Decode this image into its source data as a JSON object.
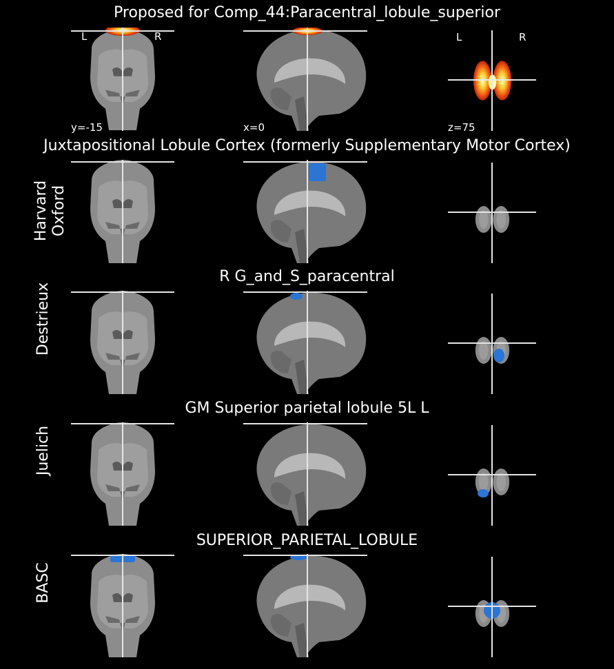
{
  "colors": {
    "background": "#000000",
    "crosshair": "#e6e6e6",
    "atlas_region": "#2a75d6",
    "proposed_hot": "#ffee66"
  },
  "figure": {
    "title": "Proposed for Comp_44:Paracentral_lobule_superior",
    "orientation": {
      "left": "L",
      "right": "R"
    },
    "coords": {
      "coronal": "y=-15",
      "sagittal": "x=0",
      "axial": "z=75"
    }
  },
  "rows": [
    {
      "atlas": "Harvard\nOxford",
      "region": "Juxtapositional Lobule Cortex (formerly Supplementary Motor Cortex)"
    },
    {
      "atlas": "Destrieux",
      "region": "R G_and_S_paracentral"
    },
    {
      "atlas": "Juelich",
      "region": "GM Superior parietal lobule 5L L"
    },
    {
      "atlas": "BASC",
      "region": "SUPERIOR_PARIETAL_LOBULE"
    }
  ]
}
